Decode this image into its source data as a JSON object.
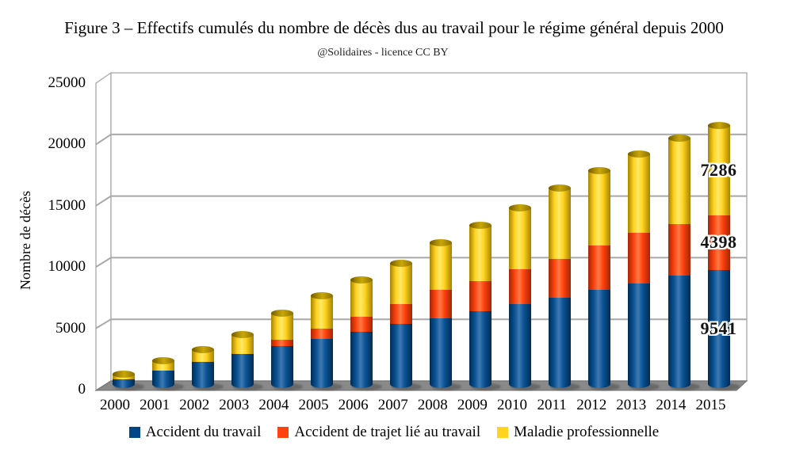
{
  "figure": {
    "title": "Figure 3 – Effectifs cumulés du nombre de décès dus au travail pour le régime général depuis 2000",
    "subtitle": "@Solidaires - licence CC BY"
  },
  "y_axis": {
    "title": "Nombre de décès",
    "tick_labels": [
      "0",
      "5000",
      "10000",
      "15000",
      "20000",
      "25000"
    ]
  },
  "legend": {
    "items": [
      {
        "label": "Accident du travail",
        "color": "#004586"
      },
      {
        "label": "Accident de trajet lié au travail",
        "color": "#ff420e"
      },
      {
        "label": "Maladie professionnelle",
        "color": "#ffd320"
      }
    ]
  },
  "colors": {
    "floor": "#898989",
    "wall_border": "#b3b3b3",
    "gridline": "#a8a8a8"
  },
  "chart_data": {
    "type": "bar",
    "stacked": true,
    "style": "3d-cylinder",
    "title": "Figure 3 – Effectifs cumulés du nombre de décès dus au travail pour le régime général depuis 2000",
    "subtitle": "@Solidaires - licence CC BY",
    "ylabel": "Nombre de décès",
    "ylim": [
      0,
      25000
    ],
    "grid": true,
    "legend_position": "bottom",
    "categories": [
      "2000",
      "2001",
      "2002",
      "2003",
      "2004",
      "2005",
      "2006",
      "2007",
      "2008",
      "2009",
      "2010",
      "2011",
      "2012",
      "2013",
      "2014",
      "2015"
    ],
    "series": [
      {
        "name": "Accident du travail",
        "color": "#004586",
        "values": [
          700,
          1430,
          2110,
          2750,
          3400,
          3950,
          4550,
          5150,
          5650,
          6200,
          6750,
          7300,
          7950,
          8450,
          9050,
          9541
        ]
      },
      {
        "name": "Accident de trajet lié au travail",
        "color": "#ff420e",
        "values": [
          0,
          0,
          0,
          0,
          500,
          830,
          1180,
          1600,
          2250,
          2450,
          2850,
          3150,
          3550,
          4050,
          4200,
          4398
        ]
      },
      {
        "name": "Maladie professionnelle",
        "color": "#ffd320",
        "values": [
          450,
          780,
          1050,
          1600,
          2150,
          2680,
          3050,
          3350,
          3850,
          4500,
          4950,
          5750,
          6100,
          6450,
          6950,
          7286
        ]
      }
    ],
    "annotations": [
      {
        "text": "9541",
        "series_index": 0,
        "category": "2015"
      },
      {
        "text": "4398",
        "series_index": 1,
        "category": "2015"
      },
      {
        "text": "7286",
        "series_index": 2,
        "category": "2015"
      }
    ]
  }
}
